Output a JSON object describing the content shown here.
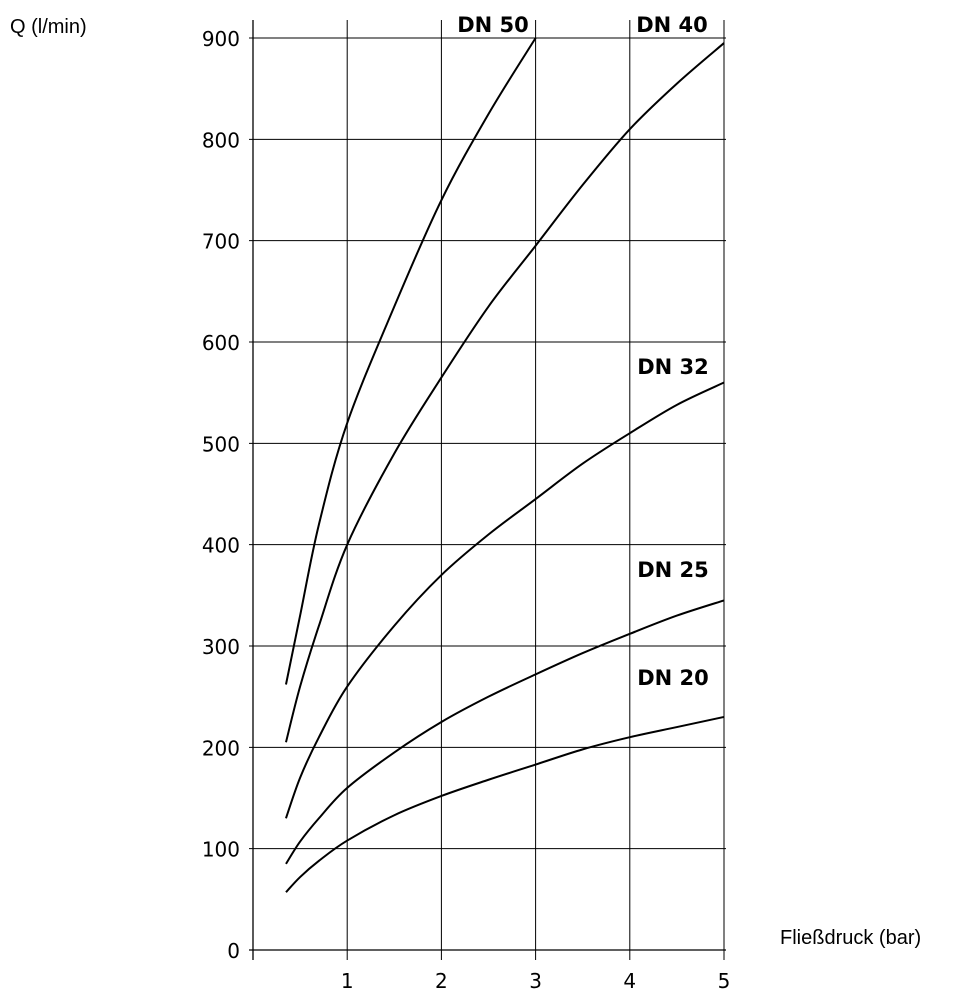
{
  "chart_data": {
    "type": "line",
    "ylabel": "Q (l/min)",
    "xlabel": "Fließdruck (bar)",
    "xlim": [
      0,
      5
    ],
    "ylim": [
      0,
      900
    ],
    "x_ticks": [
      "1",
      "2",
      "3",
      "4",
      "5"
    ],
    "y_ticks": [
      "0",
      "100",
      "200",
      "300",
      "400",
      "500",
      "600",
      "700",
      "800",
      "900"
    ],
    "grid": true,
    "series": [
      {
        "name": "DN 50",
        "x": [
          0.35,
          0.5,
          0.7,
          1.0,
          1.5,
          2.0,
          2.5,
          3.0
        ],
        "y": [
          262,
          330,
          420,
          520,
          635,
          740,
          825,
          900
        ]
      },
      {
        "name": "DN 40",
        "x": [
          0.35,
          0.5,
          0.7,
          1.0,
          1.5,
          2.0,
          2.5,
          3.0,
          3.5,
          4.0,
          4.5,
          5.0
        ],
        "y": [
          205,
          260,
          320,
          400,
          490,
          565,
          635,
          695,
          755,
          810,
          855,
          895
        ]
      },
      {
        "name": "DN 32",
        "x": [
          0.35,
          0.5,
          0.7,
          1.0,
          1.5,
          2.0,
          2.5,
          3.0,
          3.5,
          4.0,
          4.5,
          5.0
        ],
        "y": [
          130,
          170,
          210,
          260,
          320,
          370,
          410,
          445,
          480,
          510,
          538,
          560
        ]
      },
      {
        "name": "DN 25",
        "x": [
          0.35,
          0.5,
          0.7,
          1.0,
          1.5,
          2.0,
          2.5,
          3.0,
          3.5,
          4.0,
          4.5,
          5.0
        ],
        "y": [
          85,
          107,
          130,
          160,
          195,
          225,
          250,
          272,
          293,
          312,
          330,
          345
        ]
      },
      {
        "name": "DN 20",
        "x": [
          0.35,
          0.5,
          0.7,
          1.0,
          1.5,
          2.0,
          2.5,
          3.0,
          3.5,
          4.0,
          4.5,
          5.0
        ],
        "y": [
          57,
          72,
          88,
          108,
          133,
          152,
          168,
          183,
          198,
          210,
          220,
          230
        ]
      }
    ]
  }
}
